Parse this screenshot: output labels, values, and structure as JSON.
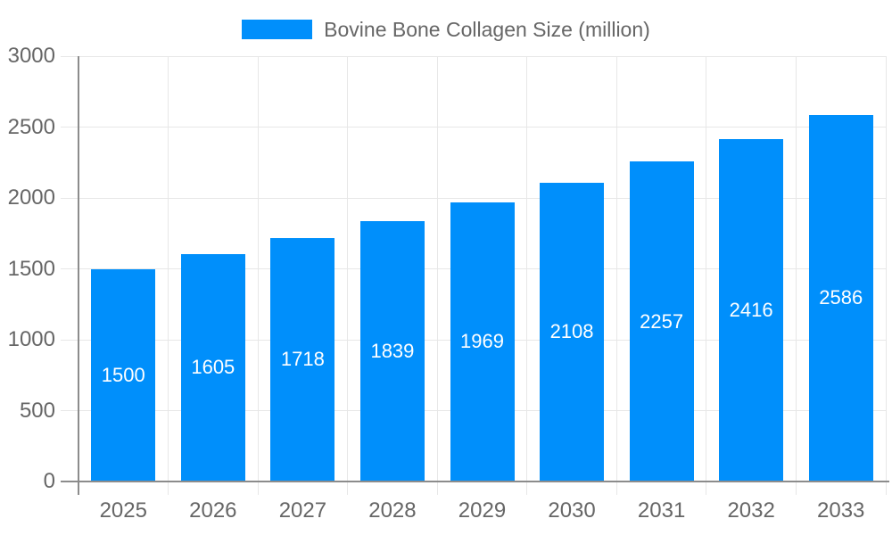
{
  "legend": {
    "label": "Bovine Bone Collagen Size (million)"
  },
  "chart_data": {
    "type": "bar",
    "title": "Bovine Bone Collagen Size (million)",
    "categories": [
      "2025",
      "2026",
      "2027",
      "2028",
      "2029",
      "2030",
      "2031",
      "2032",
      "2033"
    ],
    "values": [
      1500,
      1605,
      1718,
      1839,
      1969,
      2108,
      2257,
      2416,
      2586
    ],
    "value_labels": [
      "1500",
      "1605",
      "1718",
      "1839",
      "1969",
      "2108",
      "2257",
      "2416",
      "2586"
    ],
    "xlabel": "",
    "ylabel": "",
    "ylim": [
      0,
      3000
    ],
    "yticks": [
      0,
      500,
      1000,
      1500,
      2000,
      2500,
      3000
    ],
    "ytick_labels": [
      "0",
      "500",
      "1000",
      "1500",
      "2000",
      "2500",
      "3000"
    ],
    "grid": true,
    "legend_position": "top"
  },
  "colors": {
    "bar": "#008FFB",
    "grid": "#e7e7e7",
    "axis": "#8c8c8c",
    "label": "#666666",
    "value_label": "#ffffff",
    "background": "#ffffff"
  }
}
